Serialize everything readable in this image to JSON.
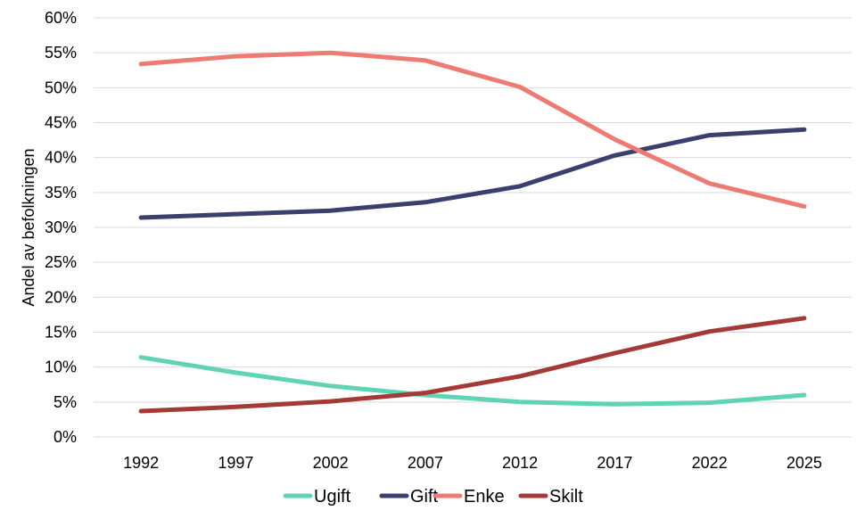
{
  "chart_data": {
    "type": "line",
    "title": "",
    "xlabel": "",
    "ylabel": "Andel av befolkningen",
    "categories": [
      "1992",
      "1997",
      "2002",
      "2007",
      "2012",
      "2017",
      "2022",
      "2025"
    ],
    "ylim": [
      0,
      60
    ],
    "yticks": [
      0,
      5,
      10,
      15,
      20,
      25,
      30,
      35,
      40,
      45,
      50,
      55,
      60
    ],
    "ytick_labels": [
      "0%",
      "5%",
      "10%",
      "15%",
      "20%",
      "25%",
      "30%",
      "35%",
      "40%",
      "45%",
      "50%",
      "55%",
      "60%"
    ],
    "grid": true,
    "legend": "bottom",
    "series": [
      {
        "name": "Ugift",
        "color": "#5fd3b3",
        "values": [
          11.4,
          9.2,
          7.3,
          6.0,
          5.0,
          4.7,
          4.9,
          6.0
        ]
      },
      {
        "name": "Gift",
        "color": "#3b3f6b",
        "values": [
          31.4,
          31.9,
          32.4,
          33.6,
          35.9,
          40.3,
          43.2,
          44.0
        ]
      },
      {
        "name": "Enke",
        "color": "#ec7b73",
        "values": [
          53.4,
          54.5,
          55.0,
          53.9,
          50.1,
          42.6,
          36.3,
          33.0
        ]
      },
      {
        "name": "Skilt",
        "color": "#a33a35",
        "values": [
          3.7,
          4.3,
          5.1,
          6.3,
          8.7,
          12.0,
          15.1,
          17.0
        ]
      }
    ]
  }
}
